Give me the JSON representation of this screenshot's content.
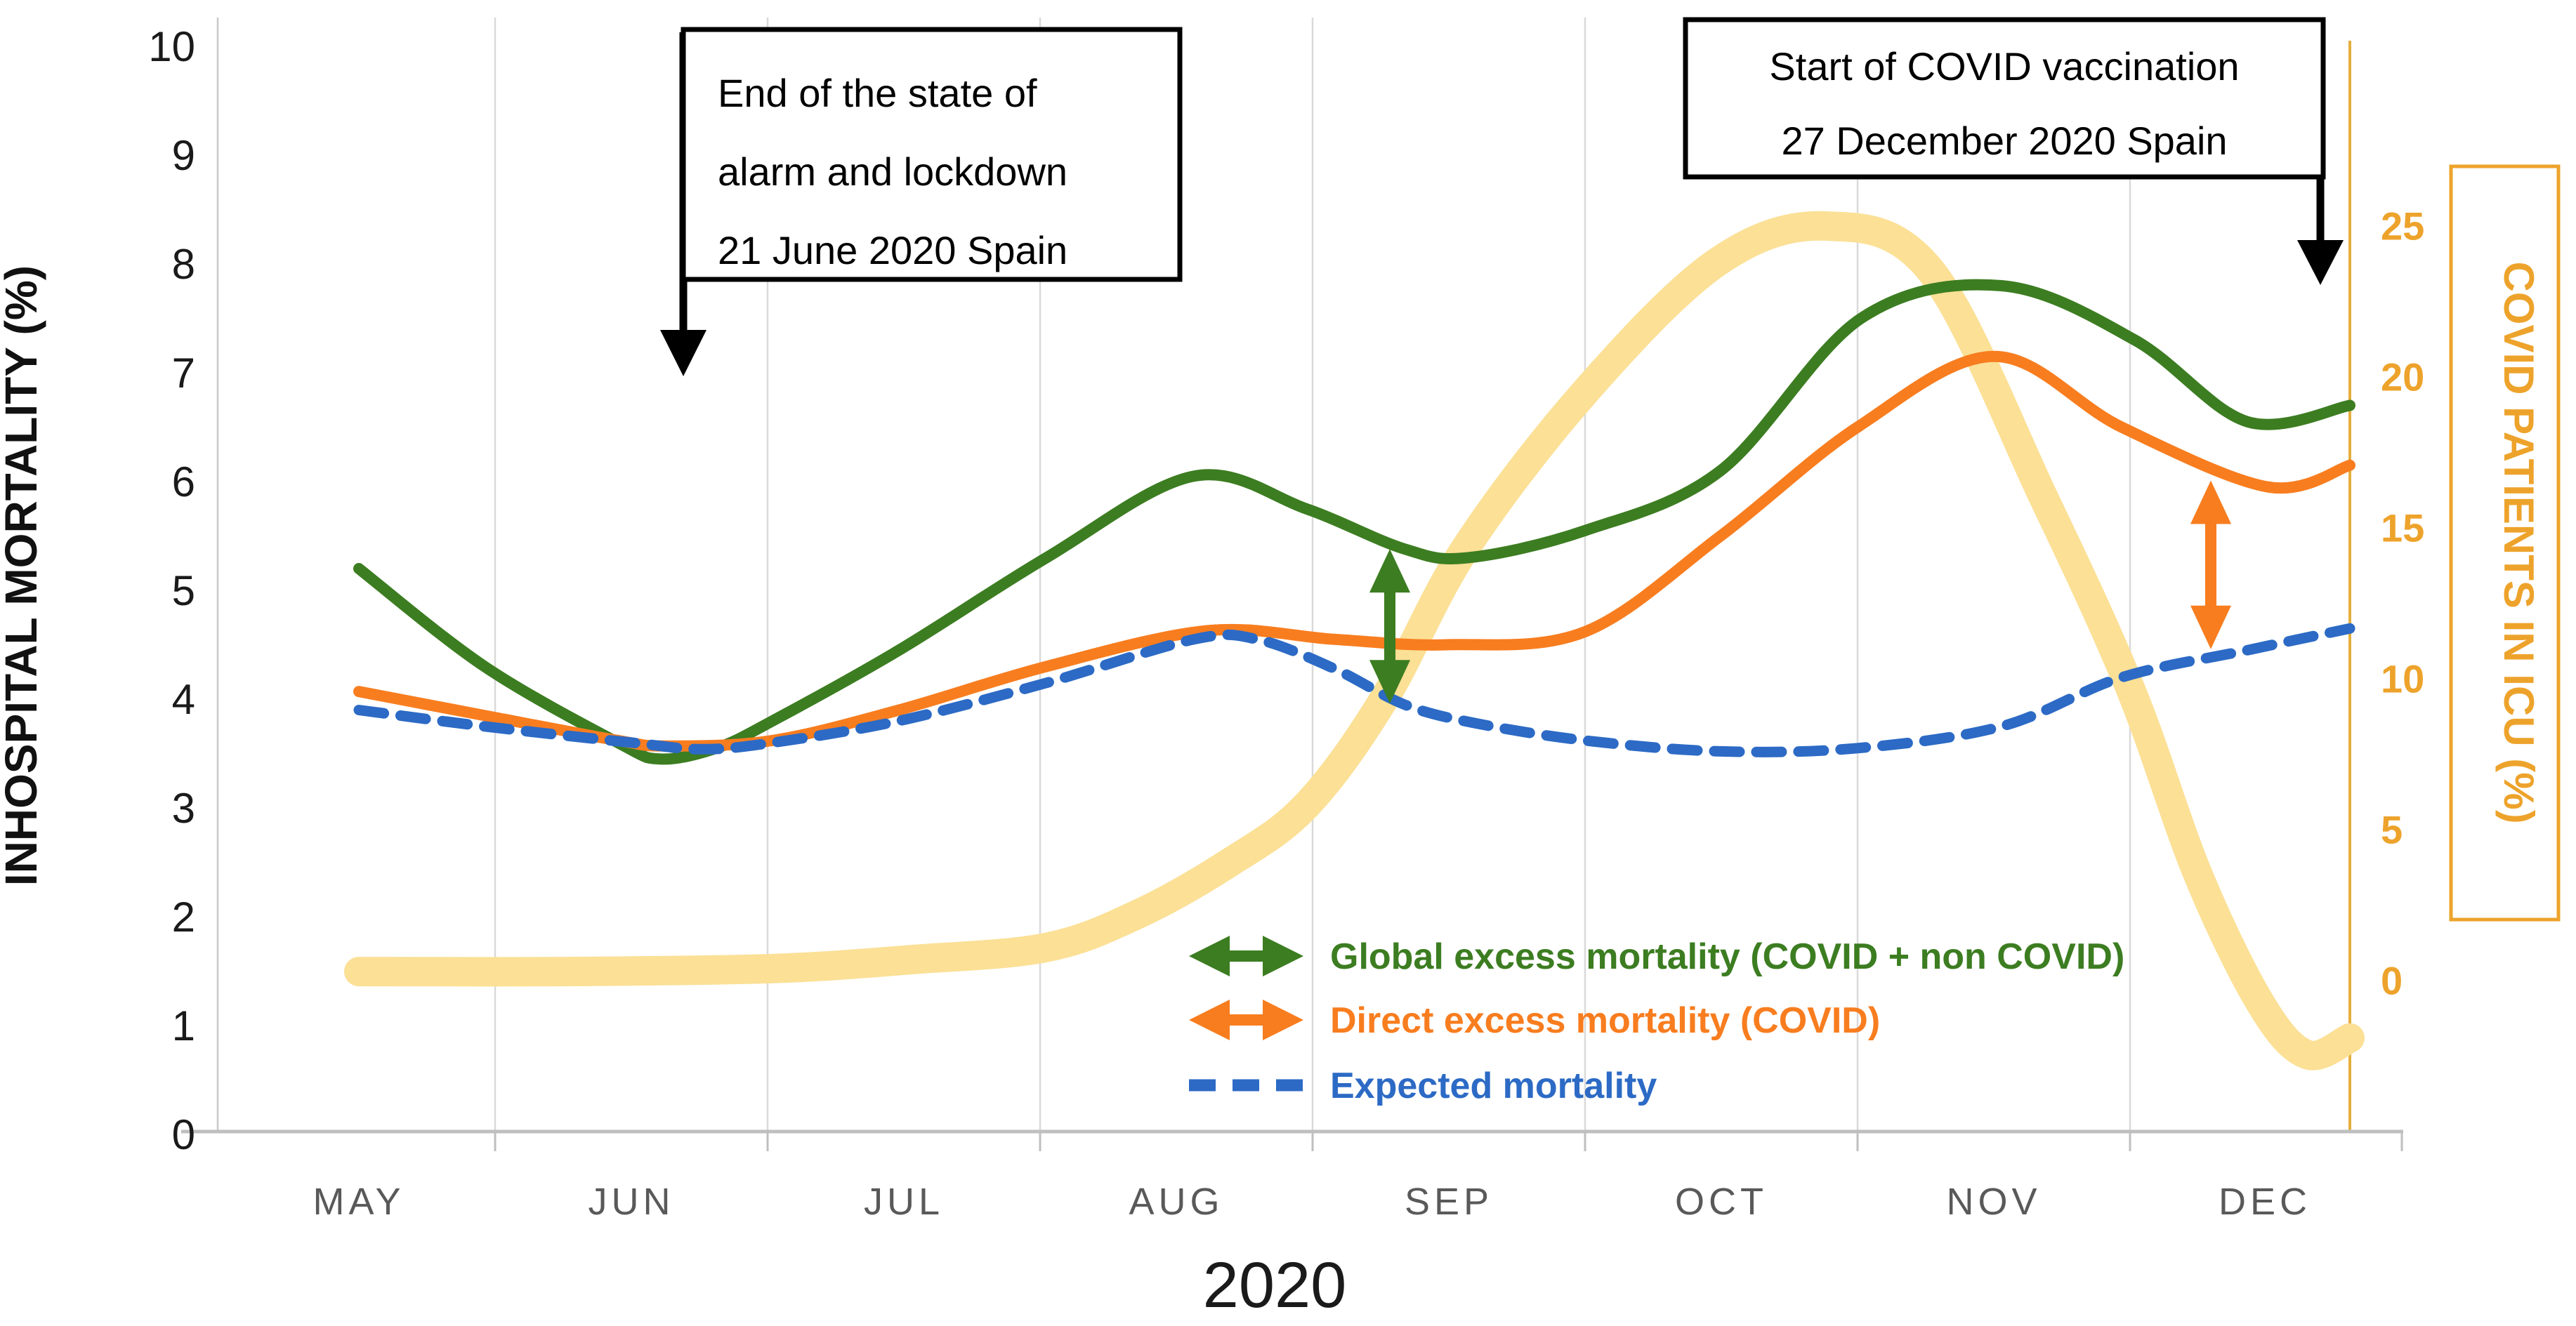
{
  "figure": {
    "year_label": "2020"
  },
  "left_axis": {
    "title": "INHOSPITAL MORTALITY (%)",
    "ticks": [
      0,
      1,
      2,
      3,
      4,
      5,
      6,
      7,
      8,
      9,
      10
    ]
  },
  "right_axis": {
    "title": "COVID PATIENTS IN ICU (%)",
    "ticks": [
      0,
      5,
      10,
      15,
      20,
      25
    ]
  },
  "x_axis": {
    "months": [
      "MAY",
      "JUN",
      "JUL",
      "AUG",
      "SEP",
      "OCT",
      "NOV",
      "DEC"
    ]
  },
  "annotation_boxes": [
    {
      "lines": [
        "End of the state of",
        "alarm and lockdown",
        "21 June 2020 Spain"
      ]
    },
    {
      "lines": [
        "Start of COVID vaccination",
        "27 December 2020 Spain"
      ]
    }
  ],
  "legend": [
    {
      "series": "global",
      "label": "Global excess mortality (COVID + non COVID)"
    },
    {
      "series": "direct",
      "label": "Direct excess mortality (COVID)"
    },
    {
      "series": "expected",
      "label": "Expected mortality"
    }
  ],
  "colors": {
    "global": "#3C7D21",
    "direct": "#F87D1F",
    "expected": "#2C6AC5",
    "icu": "#FBE096",
    "gold_text": "#EDA32B",
    "gold_line": "#E5AE3D",
    "grid": "#D9D9D9",
    "axis_line": "#BFBFBF",
    "month_text": "#595959"
  },
  "chart_data": {
    "type": "line",
    "title": "",
    "x_categories": [
      "MAY",
      "JUN",
      "JUL",
      "AUG",
      "SEP",
      "OCT",
      "NOV",
      "DEC"
    ],
    "xlabel": "2020",
    "ylabel_left": "INHOSPITAL MORTALITY (%)",
    "ylabel_right": "COVID PATIENTS IN ICU (%)",
    "ylim_left": [
      0,
      10
    ],
    "ylim_right": [
      0,
      25
    ],
    "grid": "vertical-only",
    "legend_position": "inside-bottom",
    "series": [
      {
        "name": "COVID patients in ICU (%)",
        "axis": "right",
        "style": "thick-solid",
        "color_key": "icu",
        "points": [
          [
            511,
            0.3
          ],
          [
            800,
            0.3
          ],
          [
            1100,
            0.4
          ],
          [
            1300,
            0.7
          ],
          [
            1490,
            1.1
          ],
          [
            1620,
            2.2
          ],
          [
            1750,
            3.9
          ],
          [
            1860,
            5.8
          ],
          [
            1970,
            9.3
          ],
          [
            2086,
            14.3
          ],
          [
            2257,
            19.5
          ],
          [
            2445,
            23.8
          ],
          [
            2600,
            25.0
          ],
          [
            2750,
            23.5
          ],
          [
            2910,
            16.0
          ],
          [
            3033,
            9.7
          ],
          [
            3130,
            3.5
          ],
          [
            3220,
            -0.8
          ],
          [
            3285,
            -2.45
          ],
          [
            3346,
            -1.9
          ]
        ]
      },
      {
        "name": "Global excess mortality (COVID + non COVID)",
        "axis": "left",
        "style": "solid",
        "color_key": "global",
        "points": [
          [
            511,
            5.2
          ],
          [
            690,
            4.3
          ],
          [
            880,
            3.6
          ],
          [
            940,
            3.45
          ],
          [
            1020,
            3.55
          ],
          [
            1100,
            3.8
          ],
          [
            1280,
            4.45
          ],
          [
            1490,
            5.3
          ],
          [
            1700,
            6.05
          ],
          [
            1860,
            5.75
          ],
          [
            2000,
            5.38
          ],
          [
            2090,
            5.3
          ],
          [
            2257,
            5.55
          ],
          [
            2450,
            6.1
          ],
          [
            2650,
            7.5
          ],
          [
            2850,
            7.8
          ],
          [
            3040,
            7.3
          ],
          [
            3200,
            6.55
          ],
          [
            3346,
            6.7
          ]
        ]
      },
      {
        "name": "Direct excess mortality (COVID)",
        "axis": "left",
        "style": "solid",
        "color_key": "direct",
        "points": [
          [
            511,
            4.07
          ],
          [
            690,
            3.85
          ],
          [
            880,
            3.62
          ],
          [
            950,
            3.57
          ],
          [
            1100,
            3.62
          ],
          [
            1280,
            3.9
          ],
          [
            1490,
            4.3
          ],
          [
            1720,
            4.63
          ],
          [
            1900,
            4.55
          ],
          [
            2060,
            4.5
          ],
          [
            2257,
            4.62
          ],
          [
            2450,
            5.5
          ],
          [
            2645,
            6.5
          ],
          [
            2840,
            7.15
          ],
          [
            3021,
            6.5
          ],
          [
            3230,
            5.95
          ],
          [
            3346,
            6.15
          ]
        ]
      },
      {
        "name": "Expected mortality",
        "axis": "left",
        "style": "dashed",
        "color_key": "expected",
        "points": [
          [
            511,
            3.9
          ],
          [
            690,
            3.75
          ],
          [
            900,
            3.6
          ],
          [
            1000,
            3.54
          ],
          [
            1100,
            3.6
          ],
          [
            1280,
            3.8
          ],
          [
            1490,
            4.15
          ],
          [
            1700,
            4.55
          ],
          [
            1790,
            4.55
          ],
          [
            1900,
            4.28
          ],
          [
            2000,
            3.95
          ],
          [
            2100,
            3.78
          ],
          [
            2257,
            3.62
          ],
          [
            2450,
            3.52
          ],
          [
            2645,
            3.55
          ],
          [
            2850,
            3.75
          ],
          [
            3021,
            4.2
          ],
          [
            3200,
            4.45
          ],
          [
            3346,
            4.65
          ]
        ]
      }
    ],
    "gap_arrows": [
      {
        "name": "global-excess-gap-arrow",
        "color_key": "global",
        "x": 1979,
        "top_value": 5.38,
        "bottom_value": 3.96,
        "axis": "left"
      },
      {
        "name": "direct-excess-gap-arrow",
        "color_key": "direct",
        "x": 3148,
        "top_value": 6.01,
        "bottom_value": 4.46,
        "axis": "left"
      }
    ]
  }
}
